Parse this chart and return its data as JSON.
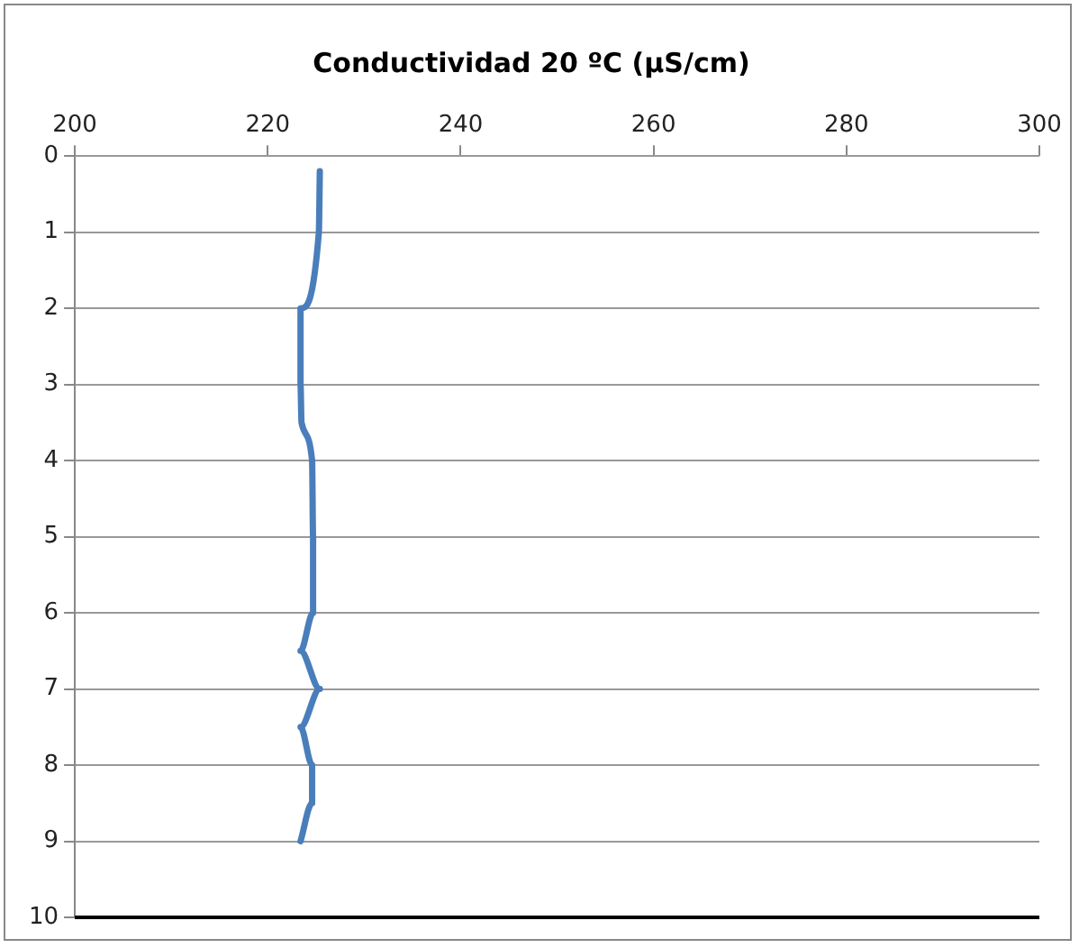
{
  "chart_data": {
    "type": "line",
    "title": "Conductividad 20 ºC (µS/cm)",
    "x": [
      225.4,
      225.3,
      223.4,
      223.4,
      223.5,
      224.6,
      224.7,
      224.7,
      223.4,
      225.4,
      223.4,
      224.6,
      224.6,
      223.4
    ],
    "values": [
      0.2,
      1,
      2,
      3,
      3.5,
      4,
      5,
      6,
      6.5,
      7,
      7.5,
      8,
      8.5,
      9
    ],
    "color": "#4a7ebb",
    "xlim": [
      200,
      300
    ],
    "xticks": [
      200,
      220,
      240,
      260,
      280,
      300
    ],
    "ylim": [
      10,
      0
    ],
    "yticks": [
      0,
      1,
      2,
      3,
      4,
      5,
      6,
      7,
      8,
      9,
      10
    ],
    "grid": "y",
    "legend": false,
    "marker": "none",
    "line_style": "solid"
  }
}
